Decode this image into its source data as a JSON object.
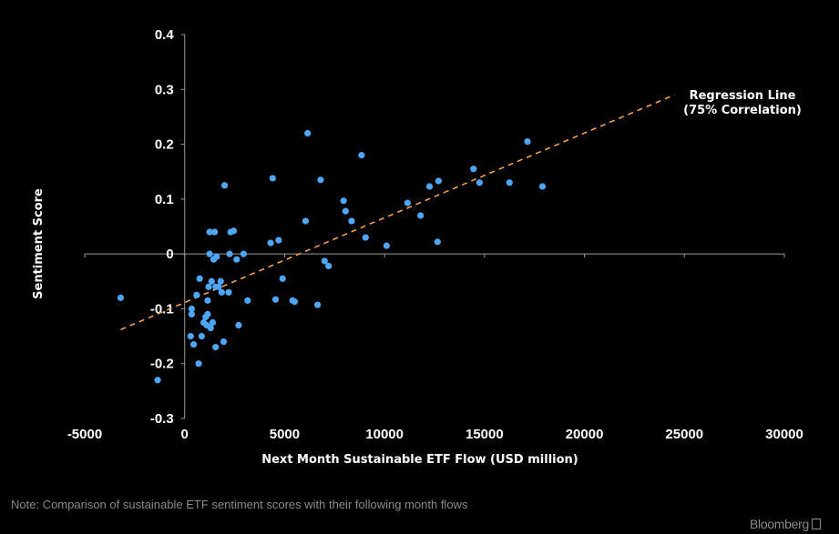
{
  "chart_data": {
    "type": "scatter",
    "xlabel": "Next Month Sustainable ETF Flow (USD million)",
    "ylabel": "Sentiment Score",
    "xlim": [
      -5000,
      30000
    ],
    "ylim": [
      -0.3,
      0.4
    ],
    "xticks": [
      "-5000",
      "0",
      "5000",
      "10000",
      "15000",
      "20000",
      "25000",
      "30000"
    ],
    "yticks": [
      "0.4",
      "0.3",
      "0.2",
      "0.1",
      "0",
      "-0.1",
      "-0.2",
      "-0.3"
    ],
    "grid": false,
    "series": [
      {
        "color": "#4ea6f5",
        "points": [
          [
            -3200,
            -0.08
          ],
          [
            -1350,
            -0.23
          ],
          [
            300,
            -0.15
          ],
          [
            350,
            -0.1
          ],
          [
            350,
            -0.11
          ],
          [
            450,
            -0.165
          ],
          [
            600,
            -0.075
          ],
          [
            700,
            -0.2
          ],
          [
            750,
            -0.045
          ],
          [
            850,
            -0.15
          ],
          [
            950,
            -0.125
          ],
          [
            1050,
            -0.115
          ],
          [
            1100,
            -0.13
          ],
          [
            1150,
            -0.085
          ],
          [
            1150,
            -0.11
          ],
          [
            1200,
            -0.06
          ],
          [
            1250,
            0.0
          ],
          [
            1250,
            0.04
          ],
          [
            1300,
            -0.135
          ],
          [
            1350,
            -0.05
          ],
          [
            1400,
            -0.125
          ],
          [
            1450,
            -0.01
          ],
          [
            1500,
            0.04
          ],
          [
            1550,
            -0.06
          ],
          [
            1550,
            -0.17
          ],
          [
            1600,
            -0.005
          ],
          [
            1700,
            -0.06
          ],
          [
            1800,
            -0.05
          ],
          [
            1850,
            -0.07
          ],
          [
            1950,
            -0.16
          ],
          [
            2000,
            0.125
          ],
          [
            2200,
            -0.07
          ],
          [
            2250,
            0.0
          ],
          [
            2300,
            0.04
          ],
          [
            2450,
            0.042
          ],
          [
            2600,
            -0.01
          ],
          [
            2700,
            -0.13
          ],
          [
            2950,
            0.0
          ],
          [
            3150,
            -0.085
          ],
          [
            4300,
            0.02
          ],
          [
            4400,
            0.138
          ],
          [
            4550,
            -0.083
          ],
          [
            4700,
            0.025
          ],
          [
            4900,
            -0.045
          ],
          [
            5400,
            -0.085
          ],
          [
            5500,
            -0.087
          ],
          [
            6050,
            0.06
          ],
          [
            6150,
            0.22
          ],
          [
            6650,
            -0.093
          ],
          [
            6800,
            0.135
          ],
          [
            7000,
            -0.013
          ],
          [
            7200,
            -0.022
          ],
          [
            7950,
            0.097
          ],
          [
            8050,
            0.078
          ],
          [
            8350,
            0.06
          ],
          [
            8850,
            0.18
          ],
          [
            9050,
            0.03
          ],
          [
            10100,
            0.015
          ],
          [
            11150,
            0.093
          ],
          [
            11800,
            0.07
          ],
          [
            12250,
            0.123
          ],
          [
            12650,
            0.022
          ],
          [
            12700,
            0.133
          ],
          [
            14450,
            0.155
          ],
          [
            14750,
            0.13
          ],
          [
            16250,
            0.13
          ],
          [
            17150,
            0.205
          ],
          [
            17900,
            0.123
          ]
        ]
      }
    ],
    "regression": {
      "x": [
        -3200,
        24500
      ],
      "y": [
        -0.138,
        0.29
      ],
      "color": "#f0a050",
      "label_line1": "Regression Line",
      "label_line2": "(75% Correlation)"
    }
  },
  "footer": {
    "note": "Note: Comparison of sustainable ETF sentiment scores with their following month flows",
    "brand": "Bloomberg"
  }
}
